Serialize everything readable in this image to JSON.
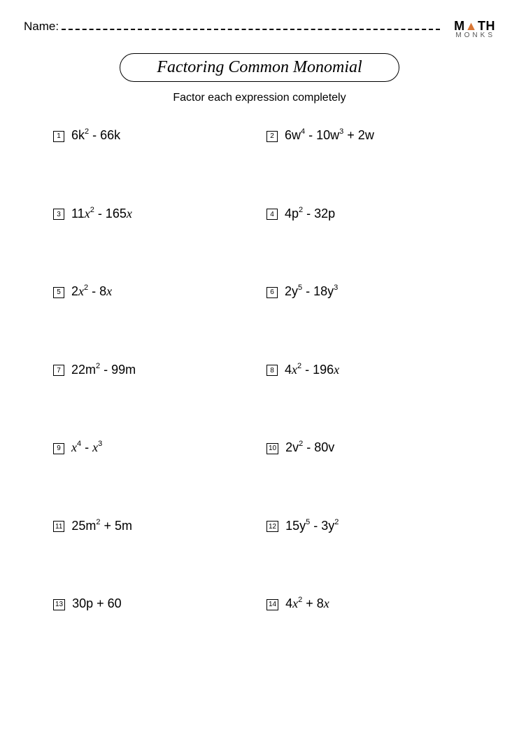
{
  "header": {
    "name_label": "Name:",
    "logo_line1_prefix": "M",
    "logo_line1_tri": "▲",
    "logo_line1_suffix": "TH",
    "logo_line2": "MONKS"
  },
  "title": "Factoring Common Monomial",
  "subtitle": "Factor each expression completely",
  "problems": [
    {
      "n": "1",
      "html": "6k<sup>2</sup> - 66k"
    },
    {
      "n": "2",
      "html": "6w<sup>4</sup> - 10w<sup>3</sup> + 2w"
    },
    {
      "n": "3",
      "html": "11<span class='var'>x</span><sup>2</sup> - 165<span class='var'>x</span>"
    },
    {
      "n": "4",
      "html": "4p<sup>2</sup> - 32p"
    },
    {
      "n": "5",
      "html": "2<span class='var'>x</span><sup>2</sup> - 8<span class='var'>x</span>"
    },
    {
      "n": "6",
      "html": "2y<sup>5</sup> - 18y<sup>3</sup>"
    },
    {
      "n": "7",
      "html": "22m<sup>2</sup> - 99m"
    },
    {
      "n": "8",
      "html": "4<span class='var'>x</span><sup>2</sup> - 196<span class='var'>x</span>"
    },
    {
      "n": "9",
      "html": "<span class='var'>x</span><sup>4</sup> - <span class='var'>x</span><sup>3</sup>"
    },
    {
      "n": "10",
      "html": "2v<sup>2</sup> - 80v"
    },
    {
      "n": "11",
      "html": "25m<sup>2</sup> + 5m"
    },
    {
      "n": "12",
      "html": "15y<sup>5</sup> - 3y<sup>2</sup>"
    },
    {
      "n": "13",
      "html": "30p + 60"
    },
    {
      "n": "14",
      "html": "4<span class='var'>x</span><sup>2</sup> + 8<span class='var'>x</span>"
    }
  ],
  "colors": {
    "text": "#000000",
    "background": "#ffffff",
    "logo_accent": "#d97736"
  }
}
